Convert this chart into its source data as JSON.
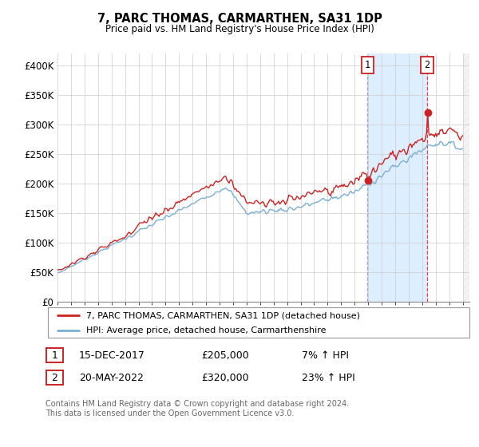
{
  "title": "7, PARC THOMAS, CARMARTHEN, SA31 1DP",
  "subtitle": "Price paid vs. HM Land Registry's House Price Index (HPI)",
  "legend_line1": "7, PARC THOMAS, CARMARTHEN, SA31 1DP (detached house)",
  "legend_line2": "HPI: Average price, detached house, Carmarthenshire",
  "annotation1_label": "1",
  "annotation1_date": "15-DEC-2017",
  "annotation1_price": "£205,000",
  "annotation1_pct": "7% ↑ HPI",
  "annotation2_label": "2",
  "annotation2_date": "20-MAY-2022",
  "annotation2_price": "£320,000",
  "annotation2_pct": "23% ↑ HPI",
  "footer": "Contains HM Land Registry data © Crown copyright and database right 2024.\nThis data is licensed under the Open Government Licence v3.0.",
  "hpi_color": "#7bafd4",
  "price_color": "#cc2222",
  "vline1_color": "#bbbbbb",
  "vline2_color": "#dd4444",
  "annotation_box_color": "#cc2222",
  "shade_color": "#ddeeff",
  "ylim": [
    0,
    420000
  ],
  "yticks": [
    0,
    50000,
    100000,
    150000,
    200000,
    250000,
    300000,
    350000,
    400000
  ],
  "xlim_start": 1995.0,
  "xlim_end": 2025.5,
  "t1": 2017.96,
  "t2": 2022.37,
  "p1": 205000,
  "p2": 320000
}
